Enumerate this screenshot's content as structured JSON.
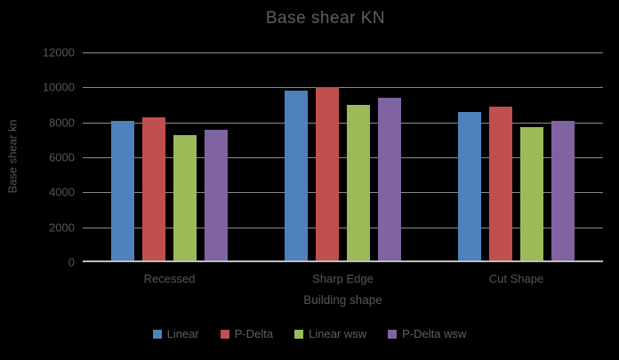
{
  "chart_data": {
    "type": "bar",
    "title": "Base shear KN",
    "xlabel": "Building shape",
    "ylabel": "Base shear kn",
    "categories": [
      "Recessed",
      "Sharp Edge",
      "Cut Shape"
    ],
    "series": [
      {
        "name": "Linear",
        "color": "#4f81bd",
        "values": [
          8100,
          9800,
          8600
        ]
      },
      {
        "name": "P-Delta",
        "color": "#c0504d",
        "values": [
          8300,
          10000,
          8900
        ]
      },
      {
        "name": "Linear wsw",
        "color": "#9bbb59",
        "values": [
          7250,
          9000,
          7750
        ]
      },
      {
        "name": "P-Delta wsw",
        "color": "#8064a2",
        "values": [
          7600,
          9400,
          8100
        ]
      }
    ],
    "ylim": [
      0,
      12000
    ],
    "ytick_step": 2000,
    "yticks": [
      0,
      2000,
      4000,
      6000,
      8000,
      10000,
      12000
    ],
    "grid": true,
    "legend_position": "bottom"
  },
  "colors": {
    "background": "#000000",
    "gridline": "#8c8c8c",
    "axis_line": "#bdbdbd",
    "text": "#5a5a5a"
  }
}
